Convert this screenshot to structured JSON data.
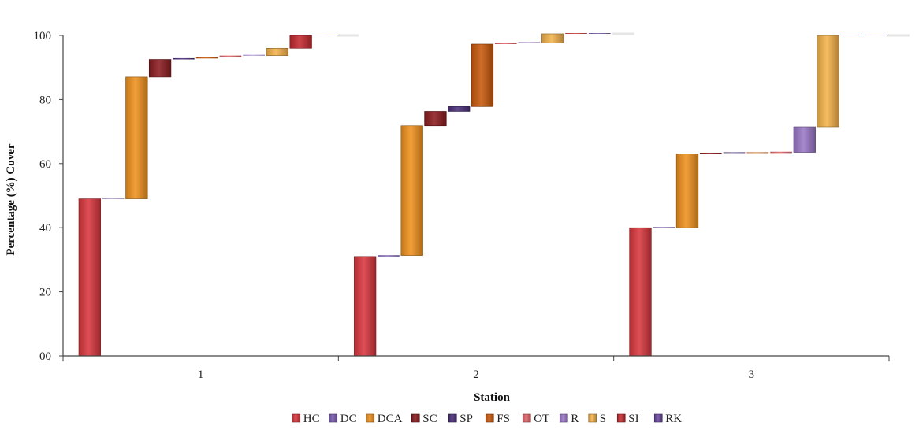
{
  "chart_data": {
    "type": "bar",
    "subtype": "stacked-waterfall",
    "xlabel": "Station",
    "ylabel": "Percentage (%) Cover",
    "ylim": [
      0,
      100
    ],
    "yticks": [
      "00",
      "20",
      "40",
      "60",
      "80",
      "100"
    ],
    "categories": [
      "1",
      "2",
      "3"
    ],
    "grid": false,
    "legend_position": "bottom",
    "series": [
      {
        "name": "HC",
        "color": "#d9373e",
        "values": [
          49.0,
          31.0,
          40.0
        ]
      },
      {
        "name": "DC",
        "color": "#7a5bb0",
        "values": [
          0.0,
          0.3,
          0.0
        ]
      },
      {
        "name": "DCA",
        "color": "#f0921e",
        "values": [
          38.0,
          40.5,
          23.0
        ]
      },
      {
        "name": "SC",
        "color": "#8c1c20",
        "values": [
          5.5,
          4.5,
          0.3
        ]
      },
      {
        "name": "SP",
        "color": "#4b2f7a",
        "values": [
          0.3,
          1.5,
          0.0
        ]
      },
      {
        "name": "FS",
        "color": "#c9590d",
        "values": [
          0.4,
          19.5,
          0.0
        ]
      },
      {
        "name": "OT",
        "color": "#e0666a",
        "values": [
          0.5,
          0.4,
          0.2
        ]
      },
      {
        "name": "R",
        "color": "#9b78c9",
        "values": [
          0.0,
          0.0,
          8.0
        ]
      },
      {
        "name": "S",
        "color": "#f5b34c",
        "values": [
          2.3,
          2.8,
          28.5
        ]
      },
      {
        "name": "SI",
        "color": "#c42a2f",
        "values": [
          4.0,
          0.0,
          0.0
        ]
      },
      {
        "name": "RK",
        "color": "#6b4aa0",
        "values": [
          0.0,
          0.0,
          0.0
        ]
      }
    ]
  }
}
